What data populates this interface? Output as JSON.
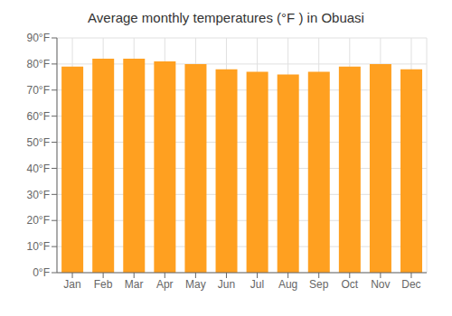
{
  "chart_data": {
    "type": "bar",
    "title": "Average monthly temperatures (°F ) in Obuasi",
    "categories": [
      "Jan",
      "Feb",
      "Mar",
      "Apr",
      "May",
      "Jun",
      "Jul",
      "Aug",
      "Sep",
      "Oct",
      "Nov",
      "Dec"
    ],
    "values": [
      79,
      82,
      82,
      81,
      80,
      78,
      77,
      76,
      77,
      79,
      80,
      78
    ],
    "color": "#FFA020",
    "ylim": [
      0,
      90
    ],
    "yticks": [
      {
        "value": 0,
        "label": "0°F"
      },
      {
        "value": 10,
        "label": "10°F"
      },
      {
        "value": 20,
        "label": "20°F"
      },
      {
        "value": 30,
        "label": "30°F"
      },
      {
        "value": 40,
        "label": "40°F"
      },
      {
        "value": 50,
        "label": "50°F"
      },
      {
        "value": 60,
        "label": "60°F"
      },
      {
        "value": 70,
        "label": "70°F"
      },
      {
        "value": 80,
        "label": "80°F"
      },
      {
        "value": 90,
        "label": "90°F"
      }
    ],
    "grid": true
  }
}
